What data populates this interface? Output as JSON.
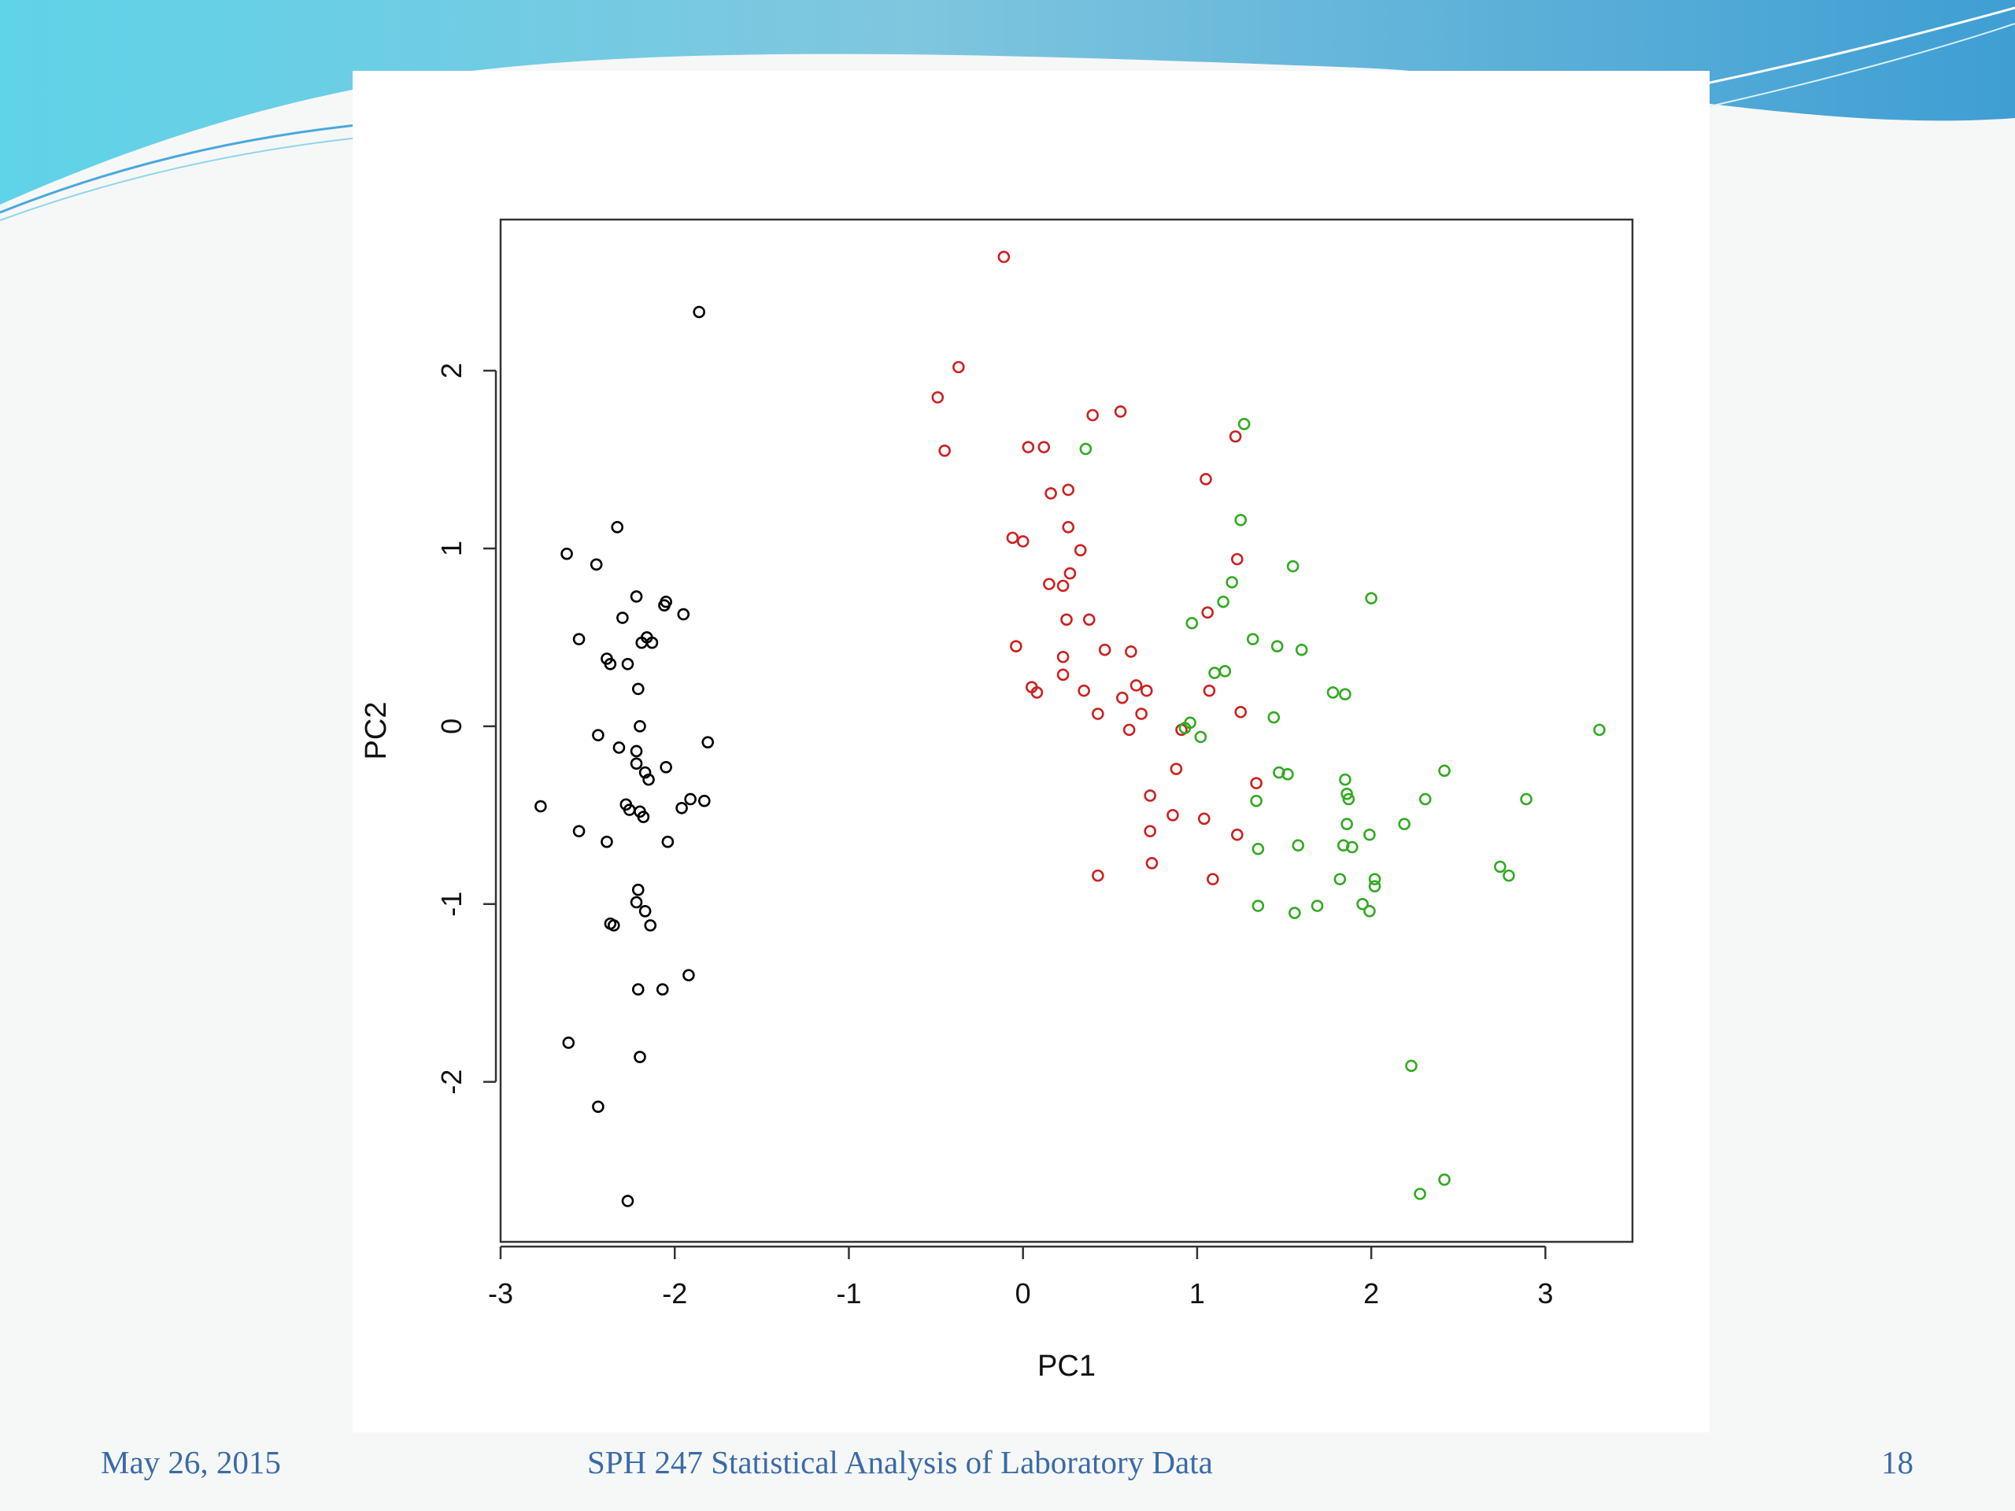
{
  "slide": {
    "footer_date": "May 26, 2015",
    "footer_title": "SPH 247 Statistical Analysis of Laboratory Data",
    "page_number": "18",
    "accent_color": "#3b6aa8"
  },
  "chart_data": {
    "type": "scatter",
    "title": "",
    "xlabel": "PC1",
    "ylabel": "PC2",
    "xlim": [
      -3.0,
      3.5
    ],
    "ylim": [
      -2.9,
      2.85
    ],
    "xticks": [
      -3,
      -2,
      -1,
      0,
      1,
      2,
      3
    ],
    "yticks": [
      -2,
      -1,
      0,
      1,
      2
    ],
    "grid": false,
    "legend": "none",
    "marker": "open-circle",
    "series": [
      {
        "color": "#000000",
        "points": [
          [
            -1.86,
            2.33
          ],
          [
            -2.33,
            1.12
          ],
          [
            -2.62,
            0.97
          ],
          [
            -2.45,
            0.91
          ],
          [
            -2.22,
            0.73
          ],
          [
            -2.05,
            0.7
          ],
          [
            -2.06,
            0.68
          ],
          [
            -1.95,
            0.63
          ],
          [
            -2.3,
            0.61
          ],
          [
            -2.16,
            0.5
          ],
          [
            -2.19,
            0.47
          ],
          [
            -2.13,
            0.47
          ],
          [
            -2.55,
            0.49
          ],
          [
            -2.39,
            0.38
          ],
          [
            -2.37,
            0.35
          ],
          [
            -2.27,
            0.35
          ],
          [
            -2.21,
            0.21
          ],
          [
            -2.2,
            0.0
          ],
          [
            -2.44,
            -0.05
          ],
          [
            -1.81,
            -0.09
          ],
          [
            -2.32,
            -0.12
          ],
          [
            -2.22,
            -0.14
          ],
          [
            -2.22,
            -0.21
          ],
          [
            -2.05,
            -0.23
          ],
          [
            -2.17,
            -0.26
          ],
          [
            -2.15,
            -0.3
          ],
          [
            -2.77,
            -0.45
          ],
          [
            -1.91,
            -0.41
          ],
          [
            -1.83,
            -0.42
          ],
          [
            -2.28,
            -0.44
          ],
          [
            -2.26,
            -0.47
          ],
          [
            -2.2,
            -0.48
          ],
          [
            -1.96,
            -0.46
          ],
          [
            -2.18,
            -0.51
          ],
          [
            -2.55,
            -0.59
          ],
          [
            -2.39,
            -0.65
          ],
          [
            -2.04,
            -0.65
          ],
          [
            -2.21,
            -0.92
          ],
          [
            -2.22,
            -0.99
          ],
          [
            -2.17,
            -1.04
          ],
          [
            -2.37,
            -1.11
          ],
          [
            -2.35,
            -1.12
          ],
          [
            -2.14,
            -1.12
          ],
          [
            -1.92,
            -1.4
          ],
          [
            -2.21,
            -1.48
          ],
          [
            -2.07,
            -1.48
          ],
          [
            -2.61,
            -1.78
          ],
          [
            -2.2,
            -1.86
          ],
          [
            -2.44,
            -2.14
          ],
          [
            -2.27,
            -2.67
          ]
        ]
      },
      {
        "color": "#cc2222",
        "points": [
          [
            -0.11,
            2.64
          ],
          [
            -0.37,
            2.02
          ],
          [
            -0.49,
            1.85
          ],
          [
            -0.45,
            1.55
          ],
          [
            0.4,
            1.75
          ],
          [
            0.56,
            1.77
          ],
          [
            0.03,
            1.57
          ],
          [
            0.12,
            1.57
          ],
          [
            1.22,
            1.63
          ],
          [
            1.05,
            1.39
          ],
          [
            0.26,
            1.33
          ],
          [
            0.16,
            1.31
          ],
          [
            0.26,
            1.12
          ],
          [
            -0.06,
            1.06
          ],
          [
            0.0,
            1.04
          ],
          [
            0.33,
            0.99
          ],
          [
            1.23,
            0.94
          ],
          [
            0.27,
            0.86
          ],
          [
            0.15,
            0.8
          ],
          [
            0.23,
            0.79
          ],
          [
            1.06,
            0.64
          ],
          [
            0.25,
            0.6
          ],
          [
            0.38,
            0.6
          ],
          [
            -0.04,
            0.45
          ],
          [
            0.47,
            0.43
          ],
          [
            0.62,
            0.42
          ],
          [
            0.23,
            0.39
          ],
          [
            0.23,
            0.29
          ],
          [
            1.07,
            0.2
          ],
          [
            0.05,
            0.22
          ],
          [
            0.08,
            0.19
          ],
          [
            0.35,
            0.2
          ],
          [
            0.65,
            0.23
          ],
          [
            0.71,
            0.2
          ],
          [
            0.57,
            0.16
          ],
          [
            1.25,
            0.08
          ],
          [
            0.43,
            0.07
          ],
          [
            0.68,
            0.07
          ],
          [
            0.61,
            -0.02
          ],
          [
            0.91,
            -0.02
          ],
          [
            0.88,
            -0.24
          ],
          [
            1.34,
            -0.32
          ],
          [
            0.73,
            -0.39
          ],
          [
            0.86,
            -0.5
          ],
          [
            1.04,
            -0.52
          ],
          [
            0.73,
            -0.59
          ],
          [
            1.23,
            -0.61
          ],
          [
            0.74,
            -0.77
          ],
          [
            0.43,
            -0.84
          ],
          [
            1.09,
            -0.86
          ]
        ]
      },
      {
        "color": "#33aa22",
        "points": [
          [
            1.27,
            1.7
          ],
          [
            0.36,
            1.56
          ],
          [
            1.25,
            1.16
          ],
          [
            1.55,
            0.9
          ],
          [
            2.0,
            0.72
          ],
          [
            1.2,
            0.81
          ],
          [
            1.15,
            0.7
          ],
          [
            0.97,
            0.58
          ],
          [
            1.32,
            0.49
          ],
          [
            1.46,
            0.45
          ],
          [
            1.6,
            0.43
          ],
          [
            1.1,
            0.3
          ],
          [
            1.16,
            0.31
          ],
          [
            1.78,
            0.19
          ],
          [
            1.85,
            0.18
          ],
          [
            1.44,
            0.05
          ],
          [
            0.96,
            0.02
          ],
          [
            0.93,
            -0.01
          ],
          [
            1.02,
            -0.06
          ],
          [
            3.31,
            -0.02
          ],
          [
            1.47,
            -0.26
          ],
          [
            1.52,
            -0.27
          ],
          [
            2.42,
            -0.25
          ],
          [
            1.85,
            -0.3
          ],
          [
            1.86,
            -0.38
          ],
          [
            1.87,
            -0.41
          ],
          [
            2.31,
            -0.41
          ],
          [
            2.89,
            -0.41
          ],
          [
            1.34,
            -0.42
          ],
          [
            1.86,
            -0.55
          ],
          [
            2.19,
            -0.55
          ],
          [
            1.99,
            -0.61
          ],
          [
            1.84,
            -0.67
          ],
          [
            1.89,
            -0.68
          ],
          [
            1.35,
            -0.69
          ],
          [
            1.58,
            -0.67
          ],
          [
            2.74,
            -0.79
          ],
          [
            2.79,
            -0.84
          ],
          [
            2.02,
            -0.86
          ],
          [
            2.02,
            -0.9
          ],
          [
            1.82,
            -0.86
          ],
          [
            1.95,
            -1.0
          ],
          [
            1.99,
            -1.04
          ],
          [
            1.35,
            -1.01
          ],
          [
            1.56,
            -1.05
          ],
          [
            1.69,
            -1.01
          ],
          [
            2.23,
            -1.91
          ],
          [
            2.42,
            -2.55
          ],
          [
            2.28,
            -2.63
          ]
        ]
      }
    ]
  }
}
